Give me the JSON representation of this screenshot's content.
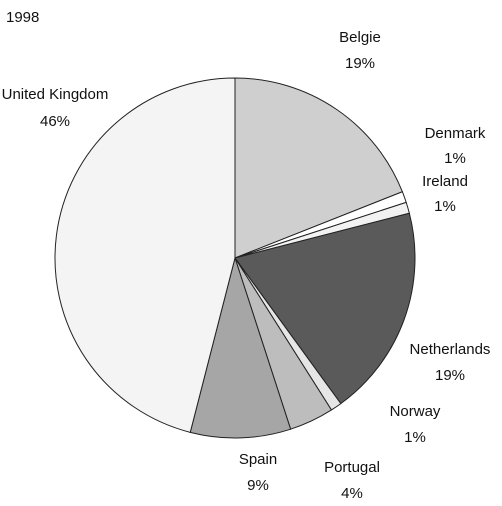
{
  "chart_data": {
    "type": "pie",
    "title": "1998",
    "categories": [
      "Belgie",
      "Denmark",
      "Ireland",
      "Netherlands",
      "Norway",
      "Portugal",
      "Spain",
      "United Kingdom"
    ],
    "values": [
      19,
      1,
      1,
      19,
      1,
      4,
      9,
      46
    ],
    "value_labels": [
      "19%",
      "1%",
      "1%",
      "19%",
      "1%",
      "4%",
      "9%",
      "46%"
    ],
    "colors": [
      "#cfcfcf",
      "#ffffff",
      "#f2f2f2",
      "#5a5a5a",
      "#e6e6e6",
      "#bdbdbd",
      "#a6a6a6",
      "#f4f4f4"
    ]
  }
}
